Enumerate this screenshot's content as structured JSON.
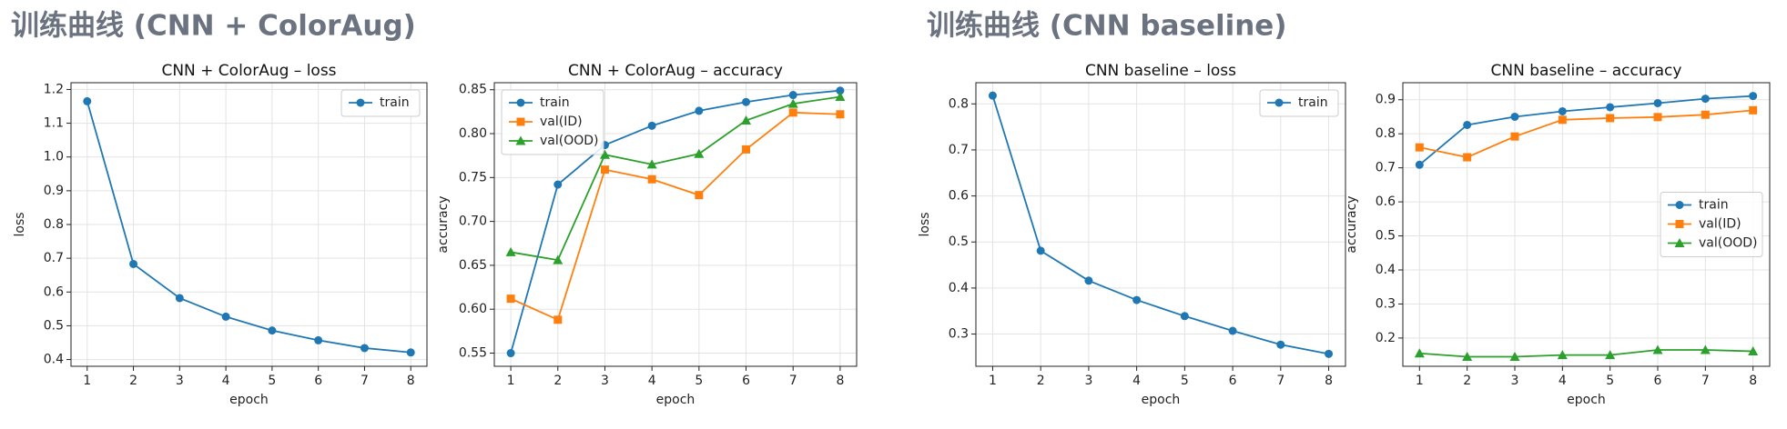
{
  "headings": [
    "训练曲线 (CNN + ColorAug)",
    "训练曲线 (CNN baseline)"
  ],
  "chart_data": [
    {
      "type": "line",
      "title": "CNN + ColorAug – loss",
      "x_label": "epoch",
      "y_label": "loss",
      "x": [
        1,
        2,
        3,
        4,
        5,
        6,
        7,
        8
      ],
      "xlim": [
        0.65,
        8.35
      ],
      "xticks": [
        1,
        2,
        3,
        4,
        5,
        6,
        7,
        8
      ],
      "ylim": [
        0.38,
        1.22
      ],
      "yticks": [
        0.4,
        0.5,
        0.6,
        0.7,
        0.8,
        0.9,
        {
          "value": 1.0,
          "label": "1.0"
        },
        1.1,
        1.2
      ],
      "grid": true,
      "legend": "upper right",
      "series": [
        {
          "name": "train",
          "color": "#1f77b4",
          "marker": "circle",
          "values": [
            1.165,
            0.683,
            0.582,
            0.527,
            0.486,
            0.457,
            0.434,
            0.421
          ]
        }
      ]
    },
    {
      "type": "line",
      "title": "CNN + ColorAug – accuracy",
      "x_label": "epoch",
      "y_label": "accuracy",
      "x": [
        1,
        2,
        3,
        4,
        5,
        6,
        7,
        8
      ],
      "xlim": [
        0.65,
        8.35
      ],
      "xticks": [
        1,
        2,
        3,
        4,
        5,
        6,
        7,
        8
      ],
      "ylim": [
        0.535,
        0.858
      ],
      "yticks": [
        0.55,
        {
          "value": 0.6,
          "label": "0.60"
        },
        0.65,
        {
          "value": 0.7,
          "label": "0.70"
        },
        0.75,
        {
          "value": 0.8,
          "label": "0.80"
        },
        0.85
      ],
      "grid": true,
      "legend": "upper left",
      "series": [
        {
          "name": "train",
          "color": "#1f77b4",
          "marker": "circle",
          "values": [
            0.55,
            0.742,
            0.787,
            0.809,
            0.826,
            0.836,
            0.844,
            0.849
          ]
        },
        {
          "name": "val(ID)",
          "color": "#ff7f0e",
          "marker": "square",
          "values": [
            0.612,
            0.588,
            0.759,
            0.748,
            0.73,
            0.782,
            0.824,
            0.822
          ]
        },
        {
          "name": "val(OOD)",
          "color": "#2ca02c",
          "marker": "triangle",
          "values": [
            0.665,
            0.656,
            0.776,
            0.765,
            0.777,
            0.815,
            0.834,
            0.842
          ]
        }
      ]
    },
    {
      "type": "line",
      "title": "CNN baseline – loss",
      "x_label": "epoch",
      "y_label": "loss",
      "x": [
        1,
        2,
        3,
        4,
        5,
        6,
        7,
        8
      ],
      "xlim": [
        0.65,
        8.35
      ],
      "xticks": [
        1,
        2,
        3,
        4,
        5,
        6,
        7,
        8
      ],
      "ylim": [
        0.23,
        0.846
      ],
      "yticks": [
        0.3,
        0.4,
        0.5,
        0.6,
        0.7,
        0.8
      ],
      "grid": true,
      "legend": "upper right",
      "series": [
        {
          "name": "train",
          "color": "#1f77b4",
          "marker": "circle",
          "values": [
            0.818,
            0.481,
            0.416,
            0.374,
            0.339,
            0.307,
            0.277,
            0.257
          ]
        }
      ]
    },
    {
      "type": "line",
      "title": "CNN baseline – accuracy",
      "x_label": "epoch",
      "y_label": "accuracy",
      "x": [
        1,
        2,
        3,
        4,
        5,
        6,
        7,
        8
      ],
      "xlim": [
        0.65,
        8.35
      ],
      "xticks": [
        1,
        2,
        3,
        4,
        5,
        6,
        7,
        8
      ],
      "ylim": [
        0.117,
        0.95
      ],
      "yticks": [
        0.2,
        0.3,
        0.4,
        0.5,
        0.6,
        0.7,
        0.8,
        0.9
      ],
      "grid": true,
      "legend": "center right",
      "series": [
        {
          "name": "train",
          "color": "#1f77b4",
          "marker": "circle",
          "values": [
            0.709,
            0.826,
            0.85,
            0.866,
            0.878,
            0.89,
            0.903,
            0.911
          ]
        },
        {
          "name": "val(ID)",
          "color": "#ff7f0e",
          "marker": "square",
          "values": [
            0.76,
            0.731,
            0.792,
            0.841,
            0.846,
            0.849,
            0.856,
            0.869
          ]
        },
        {
          "name": "val(OOD)",
          "color": "#2ca02c",
          "marker": "triangle",
          "values": [
            0.155,
            0.145,
            0.145,
            0.15,
            0.15,
            0.165,
            0.165,
            0.161
          ]
        }
      ]
    }
  ]
}
